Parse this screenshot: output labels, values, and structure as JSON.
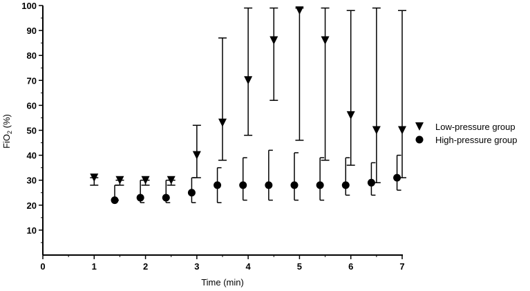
{
  "chart_data": {
    "type": "scatter",
    "xlabel": "Time (min)",
    "ylabel": {
      "base": "FiO",
      "sub": "2",
      "suffix": " (%)"
    },
    "xlim": [
      0,
      7
    ],
    "ylim": [
      0,
      100
    ],
    "xticks": [
      "0",
      "1",
      "2",
      "3",
      "4",
      "5",
      "6",
      "7"
    ],
    "yticks": [
      "10",
      "20",
      "30",
      "40",
      "50",
      "60",
      "70",
      "80",
      "90",
      "100"
    ],
    "legend_position": "right",
    "grid": false,
    "series": [
      {
        "name": "Low-pressure group",
        "marker": "triangle-down",
        "error_direction": "both",
        "points": [
          {
            "x": 1.0,
            "y": 31,
            "low": 28,
            "high": 31
          },
          {
            "x": 1.5,
            "y": 30,
            "low": 28,
            "high": 30
          },
          {
            "x": 2.0,
            "y": 30,
            "low": 28,
            "high": 30
          },
          {
            "x": 2.5,
            "y": 30,
            "low": 28,
            "high": 30
          },
          {
            "x": 3.0,
            "y": 40,
            "low": 31,
            "high": 52
          },
          {
            "x": 3.5,
            "y": 53,
            "low": 38,
            "high": 87
          },
          {
            "x": 4.0,
            "y": 70,
            "low": 48,
            "high": 99
          },
          {
            "x": 4.5,
            "y": 86,
            "low": 62,
            "high": 99
          },
          {
            "x": 5.0,
            "y": 98,
            "low": 46,
            "high": 99
          },
          {
            "x": 5.5,
            "y": 86,
            "low": 38,
            "high": 99
          },
          {
            "x": 6.0,
            "y": 56,
            "low": 36,
            "high": 98
          },
          {
            "x": 6.5,
            "y": 50,
            "low": 29,
            "high": 99
          },
          {
            "x": 7.0,
            "y": 50,
            "low": 31,
            "high": 98
          }
        ]
      },
      {
        "name": "High-pressure group",
        "marker": "circle",
        "error_direction": "right",
        "points": [
          {
            "x": 1.4,
            "y": 22,
            "low": 22,
            "high": 28
          },
          {
            "x": 1.9,
            "y": 23,
            "low": 21,
            "high": 30
          },
          {
            "x": 2.4,
            "y": 23,
            "low": 21,
            "high": 30
          },
          {
            "x": 2.9,
            "y": 25,
            "low": 21,
            "high": 31
          },
          {
            "x": 3.4,
            "y": 28,
            "low": 21,
            "high": 35
          },
          {
            "x": 3.9,
            "y": 28,
            "low": 22,
            "high": 39
          },
          {
            "x": 4.4,
            "y": 28,
            "low": 22,
            "high": 42
          },
          {
            "x": 4.9,
            "y": 28,
            "low": 22,
            "high": 41
          },
          {
            "x": 5.4,
            "y": 28,
            "low": 22,
            "high": 39
          },
          {
            "x": 5.9,
            "y": 28,
            "low": 24,
            "high": 39
          },
          {
            "x": 6.4,
            "y": 29,
            "low": 24,
            "high": 37
          },
          {
            "x": 6.9,
            "y": 31,
            "low": 26,
            "high": 40
          }
        ]
      }
    ],
    "colors": {
      "marker": "#000000",
      "axis": "#000000"
    }
  }
}
